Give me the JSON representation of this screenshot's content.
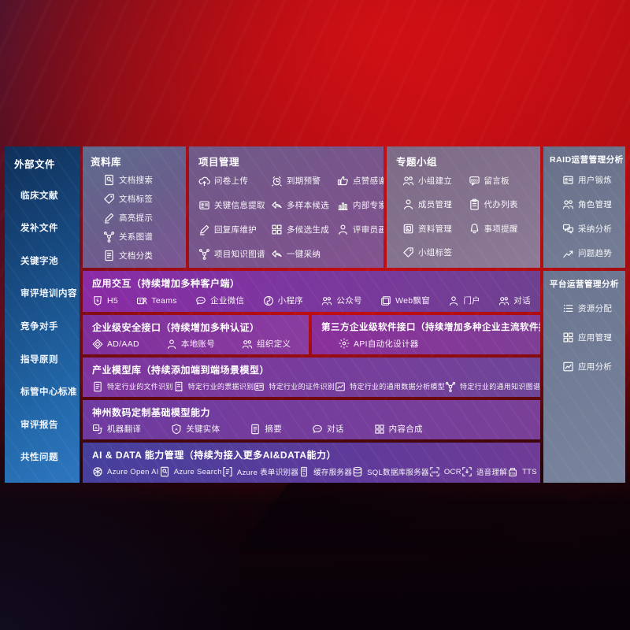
{
  "colors": {
    "background_red": "#c00e13",
    "sidebar_blue": "#2268aa",
    "panel_slate": "#757e97",
    "band_purple": "#7d35a0",
    "band_indigo": "#45409c"
  },
  "sidebar": {
    "title": "外部文件",
    "items": [
      "临床文献",
      "发补文件",
      "关键字池",
      "审评培训内容",
      "竞争对手",
      "指导原则",
      "标管中心标准",
      "审评报告",
      "共性问题"
    ]
  },
  "panels": {
    "library": {
      "title": "资料库",
      "items": [
        {
          "label": "文档搜索",
          "icon": "docsearch"
        },
        {
          "label": "文档标签",
          "icon": "tag"
        },
        {
          "label": "高亮提示",
          "icon": "pen"
        },
        {
          "label": "关系图谱",
          "icon": "network"
        },
        {
          "label": "文档分类",
          "icon": "doc"
        }
      ]
    },
    "project": {
      "title": "项目管理",
      "items": [
        {
          "label": "问卷上传",
          "icon": "cloud"
        },
        {
          "label": "到期预警",
          "icon": "alarm"
        },
        {
          "label": "点赞感谢",
          "icon": "thumb"
        },
        {
          "label": "关键信息提取",
          "icon": "card"
        },
        {
          "label": "多样本候选",
          "icon": "arrow"
        },
        {
          "label": "内部专家排名",
          "icon": "chart"
        },
        {
          "label": "回复库维护",
          "icon": "pen"
        },
        {
          "label": "多候选生成",
          "icon": "grid"
        },
        {
          "label": "评审员画像",
          "icon": "person"
        },
        {
          "label": "项目知识图谱",
          "icon": "network"
        },
        {
          "label": "一键采纳",
          "icon": "arrow"
        }
      ]
    },
    "groups": {
      "title": "专题小组",
      "items": [
        {
          "label": "小组建立",
          "icon": "people"
        },
        {
          "label": "留言板",
          "icon": "bbs"
        },
        {
          "label": "成员管理",
          "icon": "person"
        },
        {
          "label": "代办列表",
          "icon": "clipboard"
        },
        {
          "label": "资料管理",
          "icon": "album"
        },
        {
          "label": "事项提醒",
          "icon": "bell"
        },
        {
          "label": "小组标签",
          "icon": "tag"
        }
      ]
    },
    "raid": {
      "title": "RAID运营管理分析",
      "items": [
        {
          "label": "用户锻炼",
          "icon": "card"
        },
        {
          "label": "角色管理",
          "icon": "people"
        },
        {
          "label": "采纳分析",
          "icon": "chatqa"
        },
        {
          "label": "问题趋势",
          "icon": "trend"
        }
      ]
    },
    "platform": {
      "title": "平台运营管理分析",
      "items": [
        {
          "label": "资源分配",
          "icon": "list"
        },
        {
          "label": "应用管理",
          "icon": "grid"
        },
        {
          "label": "应用分析",
          "icon": "chartcard"
        }
      ]
    }
  },
  "bands": {
    "app_interaction": {
      "title": "应用交互（持续增加多种客户端）",
      "items": [
        {
          "label": "H5",
          "icon": "h5"
        },
        {
          "label": "Teams",
          "icon": "teams"
        },
        {
          "label": "企业微信",
          "icon": "wechat"
        },
        {
          "label": "小程序",
          "icon": "mini"
        },
        {
          "label": "公众号",
          "icon": "official"
        },
        {
          "label": "Web飘窗",
          "icon": "window"
        },
        {
          "label": "门户",
          "icon": "portal"
        },
        {
          "label": "对话",
          "icon": "dialog"
        }
      ]
    },
    "security": {
      "title": "企业级安全接口（持续增加多种认证）",
      "items": [
        {
          "label": "AD/AAD",
          "icon": "diamond"
        },
        {
          "label": "本地账号",
          "icon": "person"
        },
        {
          "label": "组织定义",
          "icon": "people"
        }
      ]
    },
    "third_party": {
      "title": "第三方企业级软件接口（持续增加多种企业主流软件接口）",
      "items": [
        {
          "label": "API自动化设计器",
          "icon": "gear"
        }
      ]
    },
    "industry_models": {
      "title": "产业模型库（持续添加端到端场景模型）",
      "items": [
        {
          "label": "特定行业的文件识别",
          "icon": "doc"
        },
        {
          "label": "特定行业的票据识别",
          "icon": "receipt"
        },
        {
          "label": "特定行业的证件识别",
          "icon": "card"
        },
        {
          "label": "特定行业的通用数据分析模型",
          "icon": "chartcard"
        },
        {
          "label": "特定行业的通用知识图谱模型",
          "icon": "network"
        }
      ]
    },
    "base_models": {
      "title": "神州数码定制基础模型能力",
      "items": [
        {
          "label": "机器翻译",
          "icon": "translate"
        },
        {
          "label": "关键实体",
          "icon": "shieldA"
        },
        {
          "label": "摘要",
          "icon": "doc"
        },
        {
          "label": "对话",
          "icon": "wechat"
        },
        {
          "label": "内容合成",
          "icon": "grid"
        }
      ]
    },
    "ai_data": {
      "title": "AI & DATA 能力管理（持续为接入更多AI&DATA能力）",
      "items": [
        {
          "label": "Azure Open AI",
          "icon": "openai"
        },
        {
          "label": "Azure Search",
          "icon": "docsearch"
        },
        {
          "label": "Azure 表单识别器",
          "icon": "form"
        },
        {
          "label": "缓存服务器",
          "icon": "server"
        },
        {
          "label": "SQL数据库服务器",
          "icon": "db"
        },
        {
          "label": "OCR",
          "icon": "ocr"
        },
        {
          "label": "语音理解",
          "icon": "speech"
        },
        {
          "label": "TTS",
          "icon": "tts"
        }
      ]
    }
  }
}
